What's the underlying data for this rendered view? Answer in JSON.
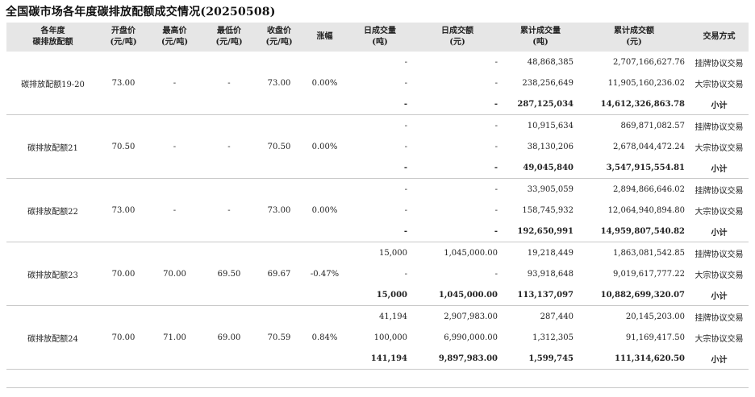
{
  "title": "全国碳市场各年度碳排放配额成交情况(20250508)",
  "headers": [
    {
      "l1": "各年度",
      "l2": "碳排放配额"
    },
    {
      "l1": "开盘价",
      "l2": "(元/吨)"
    },
    {
      "l1": "最高价",
      "l2": "(元/吨)"
    },
    {
      "l1": "最低价",
      "l2": "(元/吨)"
    },
    {
      "l1": "收盘价",
      "l2": "(元/吨)"
    },
    {
      "l1": "涨幅",
      "l2": ""
    },
    {
      "l1": "日成交量",
      "l2": "(吨)"
    },
    {
      "l1": "日成交额",
      "l2": "(元)"
    },
    {
      "l1": "累计成交量",
      "l2": "(吨)"
    },
    {
      "l1": "累计成交额",
      "l2": "(元)"
    },
    {
      "l1": "交易方式",
      "l2": ""
    }
  ],
  "groups": [
    {
      "name": "碳排放配额19-20",
      "open": "73.00",
      "high": "-",
      "low": "-",
      "close": "73.00",
      "change": "0.00%",
      "rows": [
        {
          "dvol": "-",
          "damt": "-",
          "cvol": "48,868,385",
          "camt": "2,707,166,627.76",
          "method": "挂牌协议交易"
        },
        {
          "dvol": "-",
          "damt": "-",
          "cvol": "238,256,649",
          "camt": "11,905,160,236.02",
          "method": "大宗协议交易"
        },
        {
          "dvol": "-",
          "damt": "-",
          "cvol": "287,125,034",
          "camt": "14,612,326,863.78",
          "method": "小计"
        }
      ]
    },
    {
      "name": "碳排放配额21",
      "open": "70.50",
      "high": "-",
      "low": "-",
      "close": "70.50",
      "change": "0.00%",
      "rows": [
        {
          "dvol": "-",
          "damt": "-",
          "cvol": "10,915,634",
          "camt": "869,871,082.57",
          "method": "挂牌协议交易"
        },
        {
          "dvol": "-",
          "damt": "-",
          "cvol": "38,130,206",
          "camt": "2,678,044,472.24",
          "method": "大宗协议交易"
        },
        {
          "dvol": "-",
          "damt": "-",
          "cvol": "49,045,840",
          "camt": "3,547,915,554.81",
          "method": "小计"
        }
      ]
    },
    {
      "name": "碳排放配额22",
      "open": "73.00",
      "high": "-",
      "low": "-",
      "close": "73.00",
      "change": "0.00%",
      "rows": [
        {
          "dvol": "-",
          "damt": "-",
          "cvol": "33,905,059",
          "camt": "2,894,866,646.02",
          "method": "挂牌协议交易"
        },
        {
          "dvol": "-",
          "damt": "-",
          "cvol": "158,745,932",
          "camt": "12,064,940,894.80",
          "method": "大宗协议交易"
        },
        {
          "dvol": "-",
          "damt": "-",
          "cvol": "192,650,991",
          "camt": "14,959,807,540.82",
          "method": "小计"
        }
      ]
    },
    {
      "name": "碳排放配额23",
      "open": "70.00",
      "high": "70.00",
      "low": "69.50",
      "close": "69.67",
      "change": "-0.47%",
      "rows": [
        {
          "dvol": "15,000",
          "damt": "1,045,000.00",
          "cvol": "19,218,449",
          "camt": "1,863,081,542.85",
          "method": "挂牌协议交易"
        },
        {
          "dvol": "-",
          "damt": "-",
          "cvol": "93,918,648",
          "camt": "9,019,617,777.22",
          "method": "大宗协议交易"
        },
        {
          "dvol": "15,000",
          "damt": "1,045,000.00",
          "cvol": "113,137,097",
          "camt": "10,882,699,320.07",
          "method": "小计"
        }
      ]
    },
    {
      "name": "碳排放配额24",
      "open": "70.00",
      "high": "71.00",
      "low": "69.00",
      "close": "70.59",
      "change": "0.84%",
      "rows": [
        {
          "dvol": "41,194",
          "damt": "2,907,983.00",
          "cvol": "287,440",
          "camt": "20,145,203.00",
          "method": "挂牌协议交易"
        },
        {
          "dvol": "100,000",
          "damt": "6,990,000.00",
          "cvol": "1,312,305",
          "camt": "91,169,417.50",
          "method": "大宗协议交易"
        },
        {
          "dvol": "141,194",
          "damt": "9,897,983.00",
          "cvol": "1,599,745",
          "camt": "111,314,620.50",
          "method": "小计"
        }
      ]
    }
  ]
}
